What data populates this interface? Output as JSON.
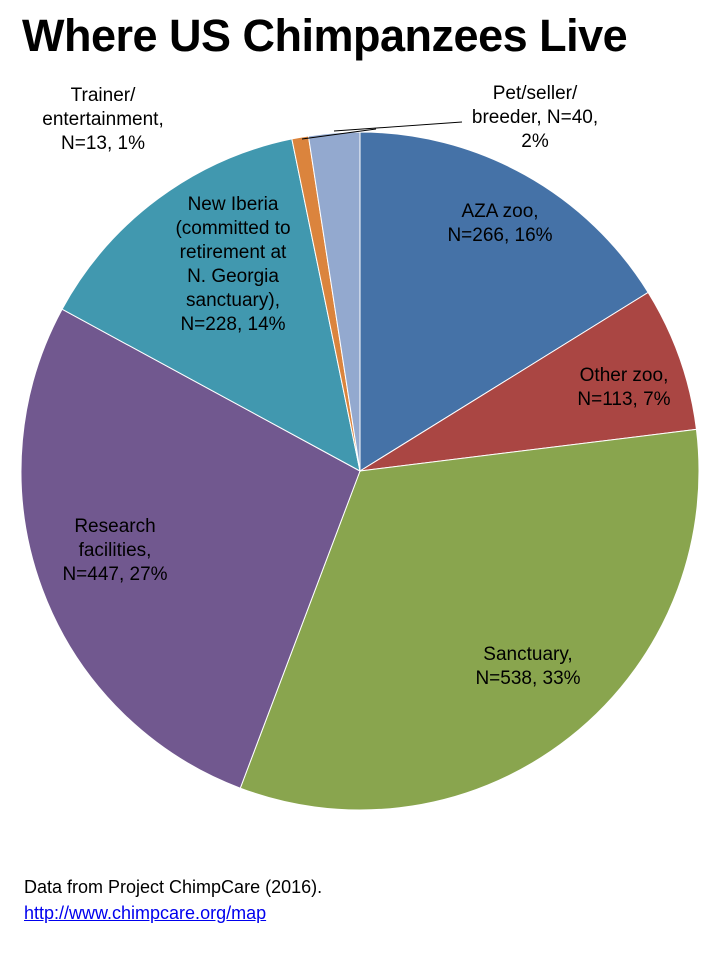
{
  "chart_data": {
    "type": "pie",
    "title": "Where US Chimpanzees Live",
    "start": "top",
    "direction": "clockwise",
    "slices": [
      {
        "name": "AZA zoo",
        "value": 266,
        "percent": 16,
        "label": "AZA zoo,\nN=266, 16%",
        "color": "#4572a7"
      },
      {
        "name": "Other zoo",
        "value": 113,
        "percent": 7,
        "label": "Other zoo,\nN=113, 7%",
        "color": "#aa4643"
      },
      {
        "name": "Sanctuary",
        "value": 538,
        "percent": 33,
        "label": "Sanctuary,\nN=538, 33%",
        "color": "#89a54e"
      },
      {
        "name": "Research facilities",
        "value": 447,
        "percent": 27,
        "label": "Research\nfacilities,\nN=447, 27%",
        "color": "#71588f"
      },
      {
        "name": "New Iberia (committed to retirement at N. Georgia sanctuary)",
        "value": 228,
        "percent": 14,
        "label": "New Iberia\n(committed to\nretirement at\nN. Georgia\nsanctuary),\nN=228, 14%",
        "color": "#4198af"
      },
      {
        "name": "Trainer/entertainment",
        "value": 13,
        "percent": 1,
        "label": "Trainer/\nentertainment,\nN=13, 1%",
        "color": "#db843d"
      },
      {
        "name": "Pet/seller/breeder",
        "value": 40,
        "percent": 2,
        "label": "Pet/seller/\nbreeder, N=40,\n2%",
        "color": "#93a9cf"
      }
    ]
  },
  "source": {
    "text": "Data from Project ChimpCare (2016).",
    "link": "http://www.chimpcare.org/map"
  }
}
